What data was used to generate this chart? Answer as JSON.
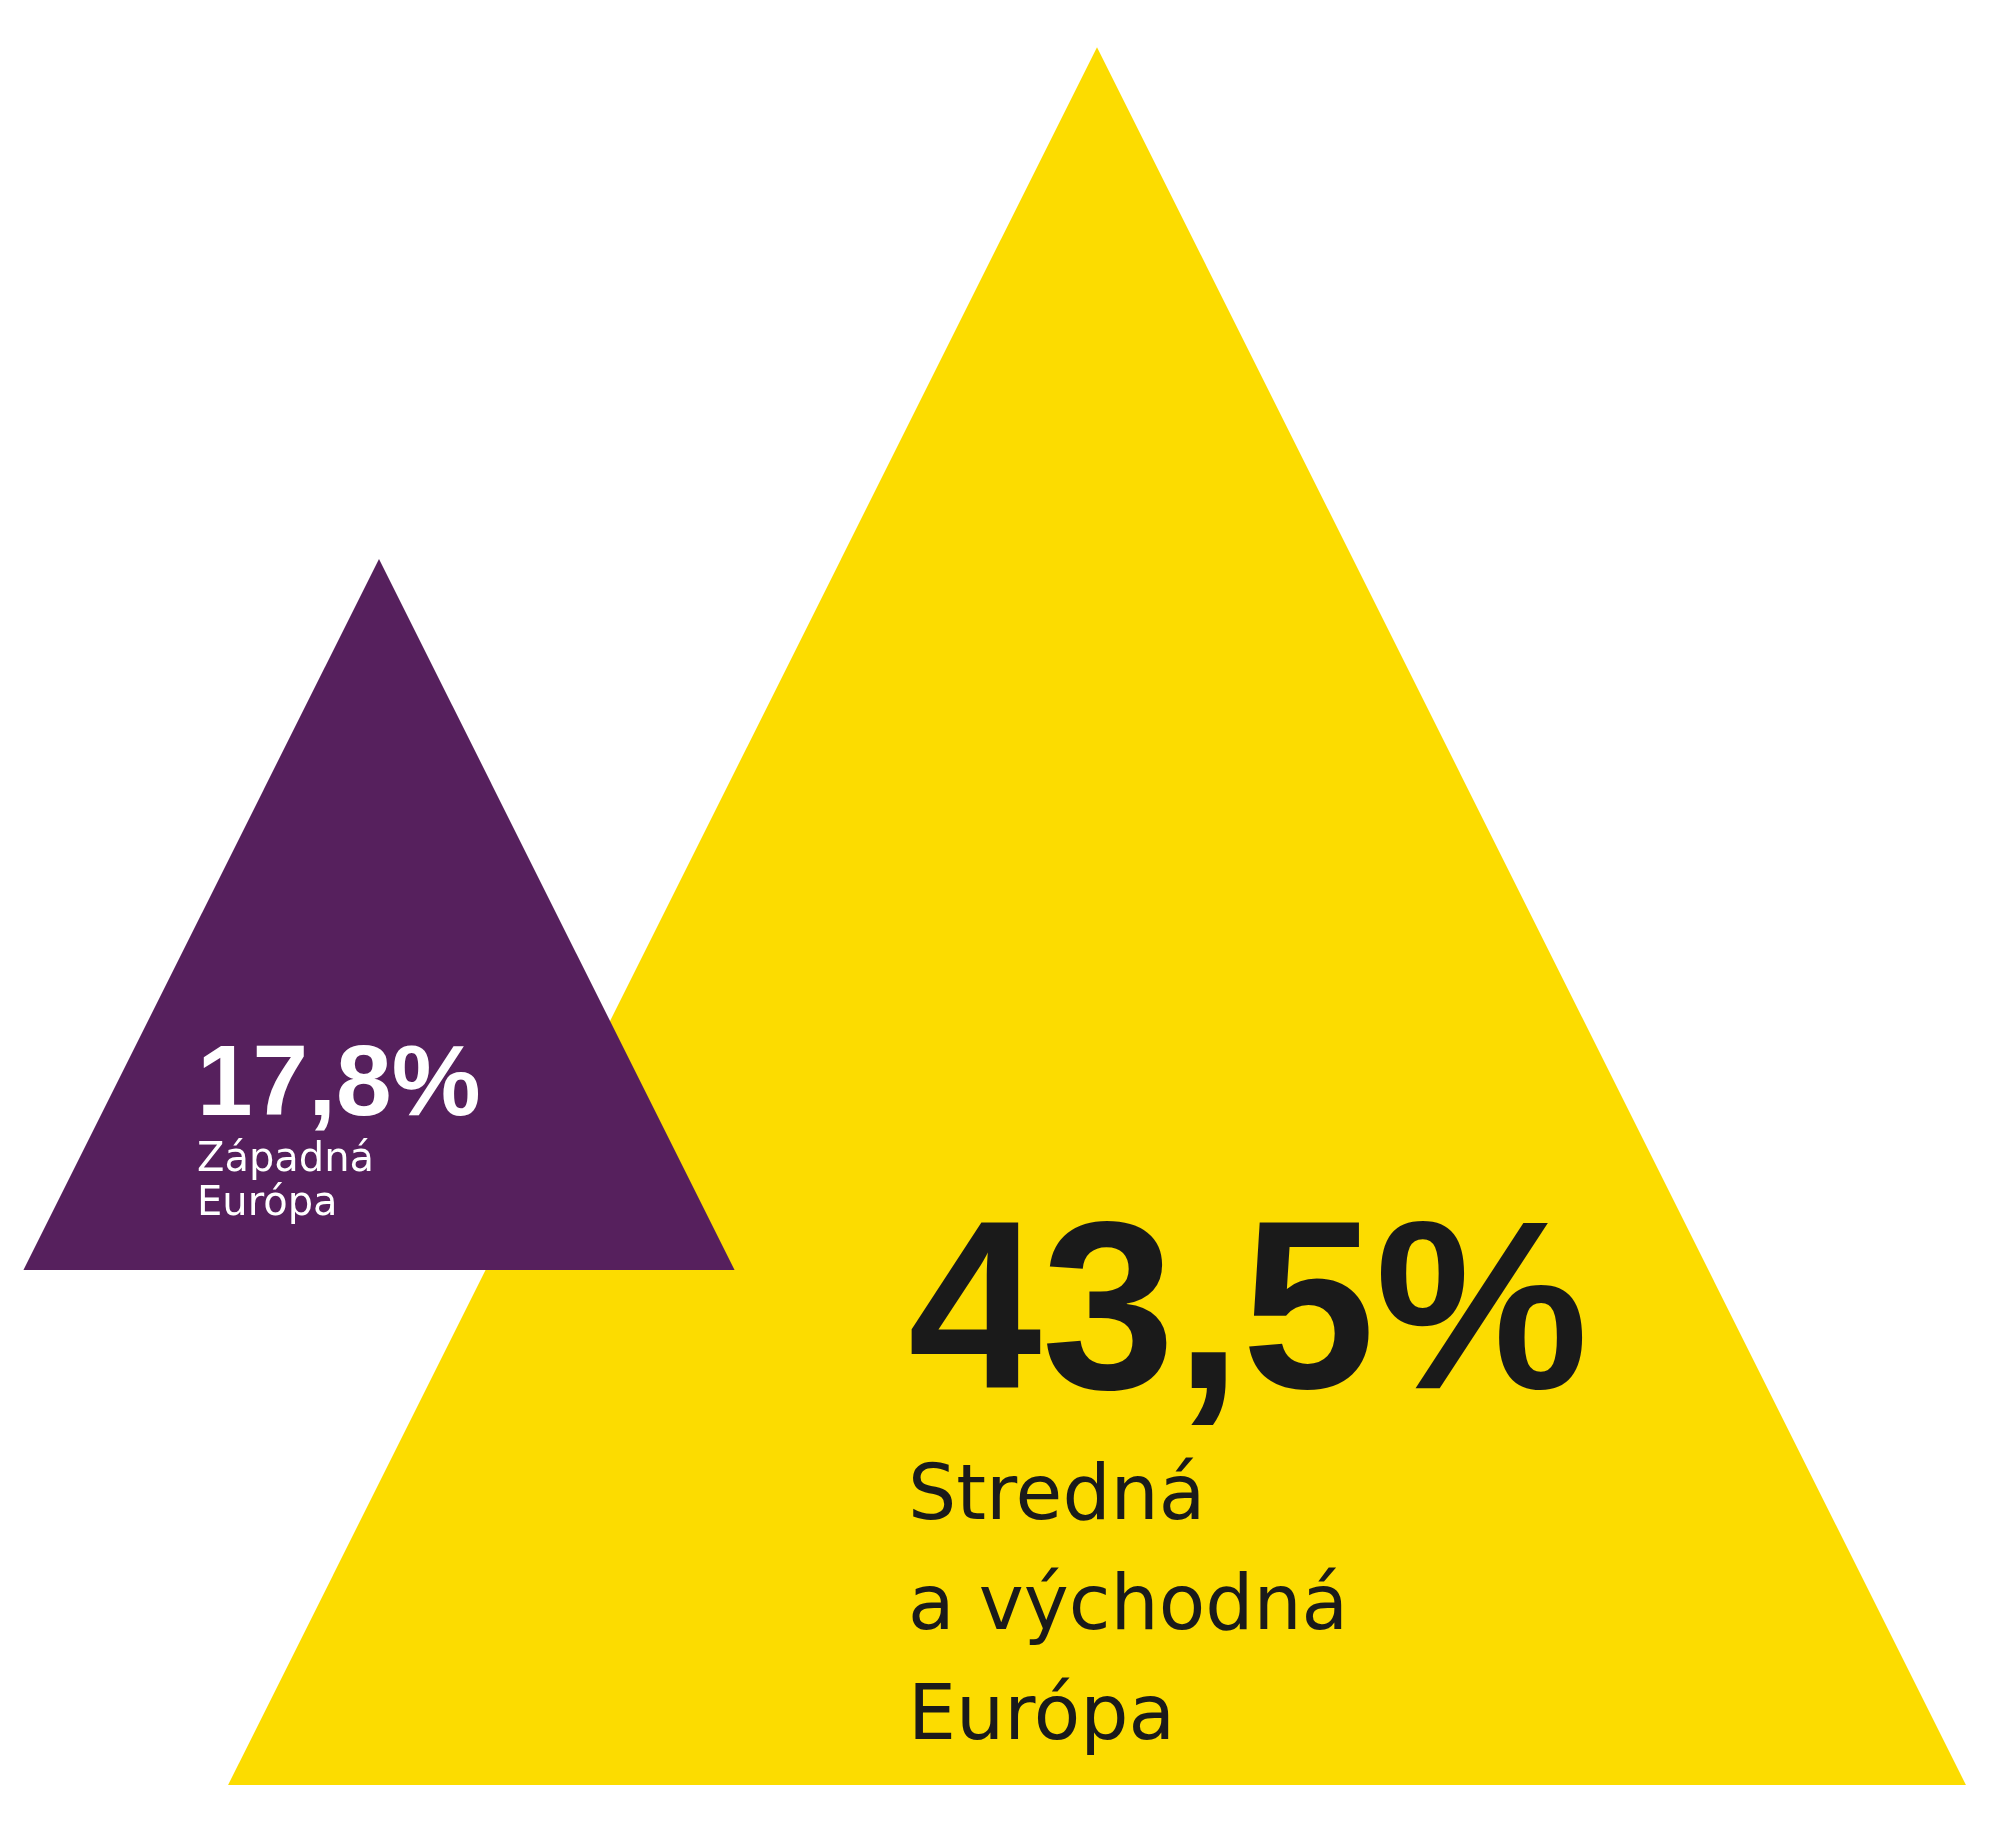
{
  "chart_data": {
    "type": "other",
    "categories": [
      "Západná\nEurópa",
      "Stredná\na východná\nEurópa"
    ],
    "values": [
      17.8,
      43.5
    ],
    "colors": [
      "#56205d",
      "#fcdc00"
    ],
    "value_labels": [
      "17,8%",
      "43,5%"
    ]
  }
}
